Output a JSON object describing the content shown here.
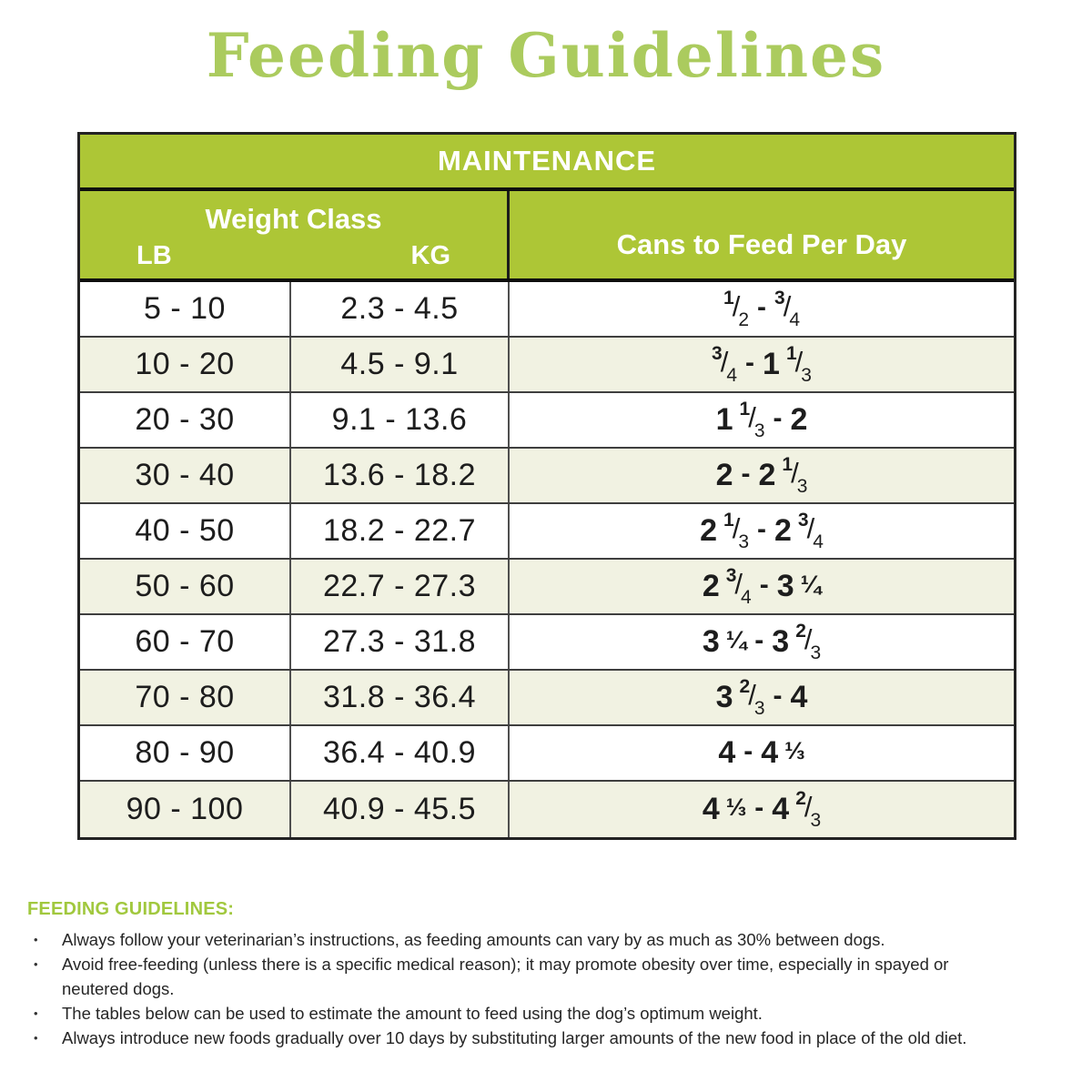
{
  "title": "Feeding Guidelines",
  "table": {
    "title": "MAINTENANCE",
    "weight_class_label": "Weight Class",
    "lb_label": "LB",
    "kg_label": "KG",
    "cans_label": "Cans to Feed Per Day",
    "rows": [
      {
        "lb": "5 - 10",
        "kg": "2.3 - 4.5",
        "cans_text": "1/2 - 3/4",
        "cans": [
          {
            "f": [
              "1",
              "2"
            ]
          },
          {
            "d": "-"
          },
          {
            "f": [
              "3",
              "4"
            ]
          }
        ]
      },
      {
        "lb": "10 - 20",
        "kg": "4.5 - 9.1",
        "cans_text": "3/4 - 1 1/3",
        "cans": [
          {
            "f": [
              "3",
              "4"
            ]
          },
          {
            "d": "-"
          },
          {
            "w": "1"
          },
          {
            "f": [
              "1",
              "3"
            ]
          }
        ]
      },
      {
        "lb": "20 - 30",
        "kg": "9.1 - 13.6",
        "cans_text": "1 1/3 - 2",
        "cans": [
          {
            "w": "1"
          },
          {
            "f": [
              "1",
              "3"
            ]
          },
          {
            "d": "-"
          },
          {
            "w": "2"
          }
        ]
      },
      {
        "lb": "30 - 40",
        "kg": "13.6 - 18.2",
        "cans_text": "2 - 2 1/3",
        "cans": [
          {
            "w": "2"
          },
          {
            "d": "-"
          },
          {
            "w": "2"
          },
          {
            "f": [
              "1",
              "3"
            ]
          }
        ]
      },
      {
        "lb": "40 - 50",
        "kg": "18.2 - 22.7",
        "cans_text": "2 1/3 - 2 3/4",
        "cans": [
          {
            "w": "2"
          },
          {
            "f": [
              "1",
              "3"
            ]
          },
          {
            "d": "-"
          },
          {
            "w": "2"
          },
          {
            "f": [
              "3",
              "4"
            ]
          }
        ]
      },
      {
        "lb": "50 - 60",
        "kg": "22.7 - 27.3",
        "cans_text": "2 3/4 - 3 1/4",
        "cans": [
          {
            "w": "2"
          },
          {
            "f": [
              "3",
              "4"
            ]
          },
          {
            "d": "-"
          },
          {
            "w": "3"
          },
          {
            "u": "¼"
          }
        ]
      },
      {
        "lb": "60 - 70",
        "kg": "27.3 - 31.8",
        "cans_text": "3 1/4 - 3 2/3",
        "cans": [
          {
            "w": "3"
          },
          {
            "u": "¼"
          },
          {
            "d": "-"
          },
          {
            "w": "3"
          },
          {
            "f": [
              "2",
              "3"
            ]
          }
        ]
      },
      {
        "lb": "70 - 80",
        "kg": "31.8 - 36.4",
        "cans_text": "3 2/3 - 4",
        "cans": [
          {
            "w": "3"
          },
          {
            "f": [
              "2",
              "3"
            ]
          },
          {
            "d": "-"
          },
          {
            "w": "4"
          }
        ]
      },
      {
        "lb": "80 - 90",
        "kg": "36.4 - 40.9",
        "cans_text": "4 - 4 1/3",
        "cans": [
          {
            "w": "4"
          },
          {
            "d": "-"
          },
          {
            "w": "4"
          },
          {
            "u": "⅓"
          }
        ]
      },
      {
        "lb": "90 - 100",
        "kg": "40.9 - 45.5",
        "cans_text": "4 1/3 - 4 2/3",
        "cans": [
          {
            "w": "4"
          },
          {
            "u": "⅓"
          },
          {
            "d": "-"
          },
          {
            "w": "4"
          },
          {
            "f": [
              "2",
              "3"
            ]
          }
        ]
      }
    ]
  },
  "notes": {
    "heading": "FEEDING GUIDELINES:",
    "bullet_char": "•",
    "bullets": [
      "Always follow your veterinarian’s instructions, as feeding amounts can vary by as much as 30% between dogs.",
      "Avoid free-feeding (unless there is a specific medical reason); it may promote obesity over time, especially in spayed or neutered dogs.",
      "The tables below can be used to estimate the amount to feed using the dog’s optimum weight.",
      "Always introduce new foods gradually over 10 days by substituting larger amounts of the new food in place of the old diet."
    ]
  },
  "colors": {
    "table_green": "#adc636",
    "title_green": "#abcb5e",
    "notes_green": "#a1c83e",
    "row_alt_bg": "#f1f2e2",
    "row_bg": "#ffffff",
    "text": "#1d1d1d"
  }
}
